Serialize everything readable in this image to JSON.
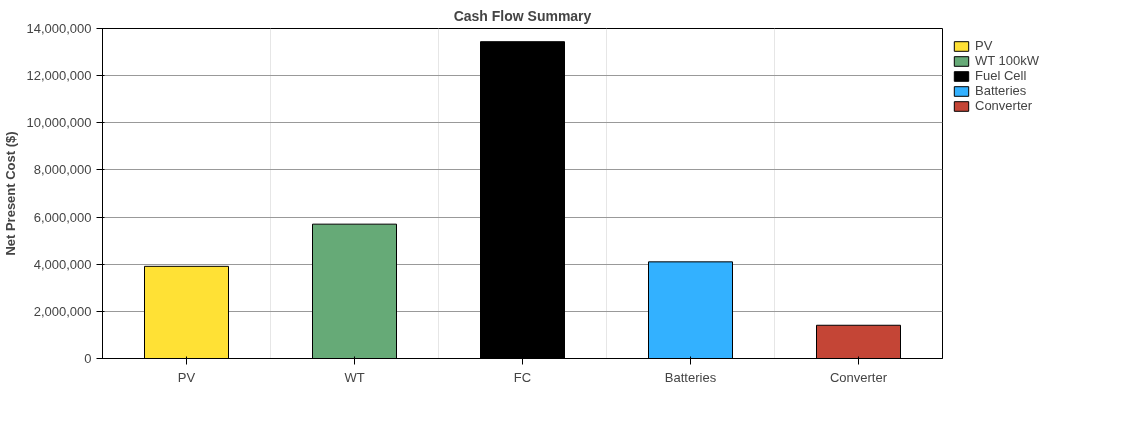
{
  "chart_data": {
    "type": "bar",
    "title": "Cash Flow Summary",
    "ylabel": "Net Present Cost ($)",
    "categories": [
      "PV",
      "WT",
      "FC",
      "Batteries",
      "Converter"
    ],
    "series": [
      {
        "name": "PV",
        "color": "#ffe135",
        "values": [
          3910000,
          null,
          null,
          null,
          null
        ]
      },
      {
        "name": "WT 100kW",
        "color": "#66aa77",
        "values": [
          null,
          5700000,
          null,
          null,
          null
        ]
      },
      {
        "name": "Fuel Cell",
        "color": "#000000",
        "values": [
          null,
          null,
          13440000,
          null,
          null
        ]
      },
      {
        "name": "Batteries",
        "color": "#33b1ff",
        "values": [
          null,
          null,
          null,
          4100000,
          null
        ]
      },
      {
        "name": "Converter",
        "color": "#c44536",
        "values": [
          null,
          null,
          null,
          null,
          1410000
        ]
      }
    ],
    "ylim": [
      0,
      14000000
    ],
    "yticks": [
      {
        "value": 0,
        "label": "0"
      },
      {
        "value": 2000000,
        "label": "2,000,000"
      },
      {
        "value": 4000000,
        "label": "4,000,000"
      },
      {
        "value": 6000000,
        "label": "6,000,000"
      },
      {
        "value": 8000000,
        "label": "8,000,000"
      },
      {
        "value": 10000000,
        "label": "10,000,000"
      },
      {
        "value": 12000000,
        "label": "12,000,000"
      },
      {
        "value": 14000000,
        "label": "14,000,000"
      }
    ],
    "grid": true,
    "legend": "right"
  }
}
